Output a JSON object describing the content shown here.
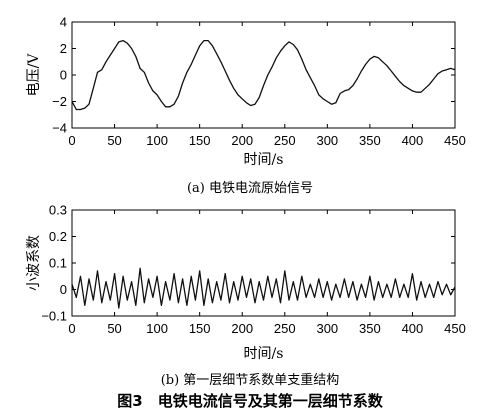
{
  "figure_caption": "图3　电铁电流信号及其第一层细节系数",
  "chart_data": [
    {
      "type": "line",
      "caption": "(a) 电铁电流原始信号",
      "xlabel": "时间/s",
      "ylabel": "电压/V",
      "xlim": [
        0,
        450
      ],
      "ylim": [
        -4,
        4
      ],
      "xticks": [
        0,
        50,
        100,
        150,
        200,
        250,
        300,
        350,
        400,
        450
      ],
      "yticks": [
        -4,
        -2,
        0,
        2,
        4
      ],
      "grid": false,
      "series": [
        {
          "x": [
            0,
            5,
            10,
            15,
            20,
            25,
            30,
            35,
            40,
            45,
            50,
            55,
            60,
            65,
            70,
            75,
            80,
            85,
            90,
            95,
            100,
            105,
            110,
            115,
            120,
            125,
            130,
            135,
            140,
            145,
            150,
            155,
            160,
            165,
            170,
            175,
            180,
            185,
            190,
            195,
            200,
            205,
            210,
            215,
            220,
            225,
            230,
            235,
            240,
            245,
            250,
            255,
            260,
            265,
            270,
            275,
            280,
            285,
            290,
            295,
            300,
            305,
            310,
            315,
            320,
            325,
            330,
            335,
            340,
            345,
            350,
            355,
            360,
            365,
            370,
            375,
            380,
            385,
            390,
            395,
            400,
            405,
            410,
            415,
            420,
            425,
            430,
            435,
            440,
            445,
            450
          ],
          "y": [
            -2.0,
            -2.6,
            -2.6,
            -2.5,
            -2.2,
            -1.0,
            0.2,
            0.4,
            1.0,
            1.5,
            2.0,
            2.5,
            2.6,
            2.4,
            2.0,
            1.4,
            0.5,
            0.2,
            -0.6,
            -1.2,
            -1.5,
            -2.0,
            -2.4,
            -2.4,
            -2.2,
            -1.6,
            -0.6,
            0.2,
            0.8,
            1.5,
            2.2,
            2.6,
            2.6,
            2.2,
            1.6,
            1.0,
            0.3,
            -0.4,
            -1.0,
            -1.5,
            -1.8,
            -2.1,
            -2.3,
            -2.2,
            -1.7,
            -0.8,
            0.0,
            0.6,
            1.3,
            1.8,
            2.2,
            2.5,
            2.3,
            1.9,
            1.2,
            0.4,
            -0.2,
            -0.8,
            -1.5,
            -1.8,
            -2.0,
            -2.2,
            -2.1,
            -1.4,
            -1.2,
            -1.1,
            -0.8,
            -0.3,
            0.3,
            0.8,
            1.2,
            1.4,
            1.3,
            1.0,
            0.7,
            0.3,
            -0.1,
            -0.5,
            -0.8,
            -1.0,
            -1.2,
            -1.3,
            -1.3,
            -1.0,
            -0.7,
            -0.3,
            0.1,
            0.3,
            0.4,
            0.5,
            0.4
          ]
        }
      ]
    },
    {
      "type": "line",
      "caption": "(b) 第一层细节系数单支重结构",
      "xlabel": "时间/s",
      "ylabel": "小波系数",
      "xlim": [
        0,
        450
      ],
      "ylim": [
        -0.1,
        0.3
      ],
      "xticks": [
        0,
        50,
        100,
        150,
        200,
        250,
        300,
        350,
        400,
        450
      ],
      "yticks": [
        -0.1,
        0,
        0.1,
        0.2,
        0.3
      ],
      "grid": false,
      "series": [
        {
          "x": [
            0,
            5,
            10,
            15,
            20,
            25,
            30,
            35,
            40,
            45,
            50,
            55,
            60,
            65,
            70,
            75,
            80,
            85,
            90,
            95,
            100,
            105,
            110,
            115,
            120,
            125,
            130,
            135,
            140,
            145,
            150,
            155,
            160,
            165,
            170,
            175,
            180,
            185,
            190,
            195,
            200,
            205,
            210,
            215,
            220,
            225,
            230,
            235,
            240,
            245,
            250,
            255,
            260,
            265,
            270,
            275,
            280,
            285,
            290,
            295,
            300,
            305,
            310,
            315,
            320,
            325,
            330,
            335,
            340,
            345,
            350,
            355,
            360,
            365,
            370,
            375,
            380,
            385,
            390,
            395,
            400,
            405,
            410,
            415,
            420,
            425,
            430,
            435,
            440,
            445,
            450
          ],
          "y": [
            0.02,
            -0.03,
            0.05,
            -0.06,
            0.04,
            -0.04,
            0.07,
            -0.05,
            0.03,
            -0.04,
            0.06,
            -0.07,
            0.05,
            -0.04,
            0.03,
            -0.06,
            0.08,
            -0.05,
            0.04,
            -0.03,
            0.05,
            -0.06,
            0.03,
            -0.04,
            0.06,
            -0.05,
            0.04,
            -0.06,
            0.05,
            -0.04,
            0.07,
            -0.06,
            0.04,
            -0.05,
            0.03,
            -0.04,
            0.06,
            -0.05,
            0.03,
            -0.04,
            0.05,
            -0.03,
            0.04,
            -0.05,
            0.03,
            -0.04,
            0.05,
            -0.03,
            0.04,
            -0.05,
            0.07,
            -0.04,
            0.03,
            -0.04,
            0.05,
            -0.03,
            0.02,
            -0.03,
            0.04,
            -0.03,
            0.03,
            -0.04,
            0.02,
            -0.03,
            0.04,
            -0.03,
            0.03,
            -0.04,
            0.02,
            -0.03,
            0.05,
            -0.04,
            0.03,
            -0.03,
            0.02,
            -0.03,
            0.04,
            -0.03,
            0.02,
            -0.03,
            0.06,
            -0.04,
            0.03,
            -0.03,
            0.02,
            -0.03,
            0.03,
            -0.02,
            0.02,
            -0.02,
            0.01
          ]
        }
      ]
    }
  ]
}
